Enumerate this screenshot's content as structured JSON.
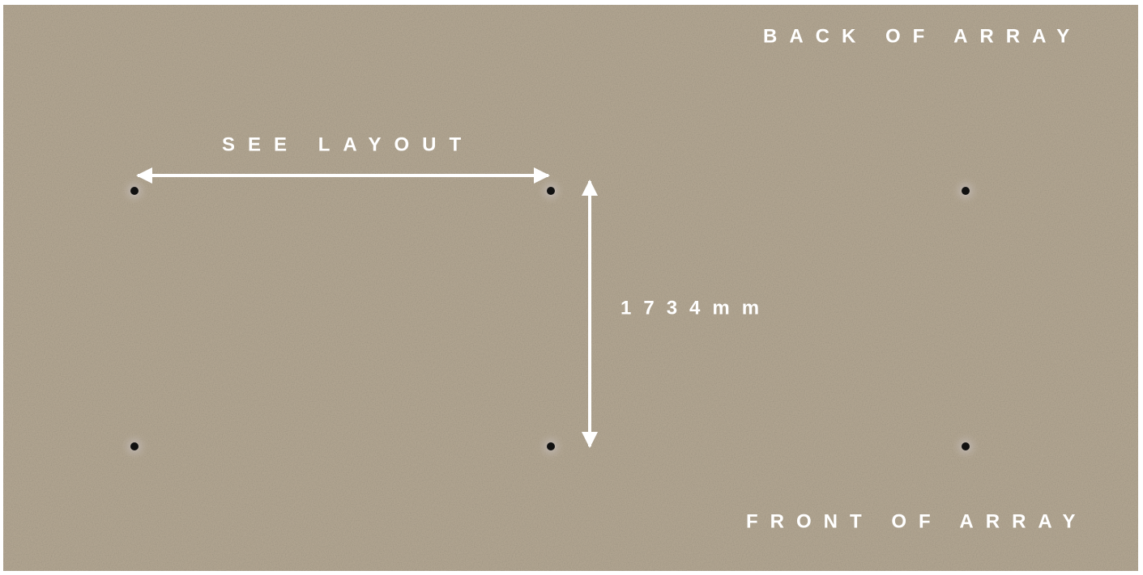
{
  "labels": {
    "back": "BACK OF ARRAY",
    "see_layout": "SEE LAYOUT",
    "spacing": "1734mm",
    "front": "FRONT OF ARRAY"
  }
}
